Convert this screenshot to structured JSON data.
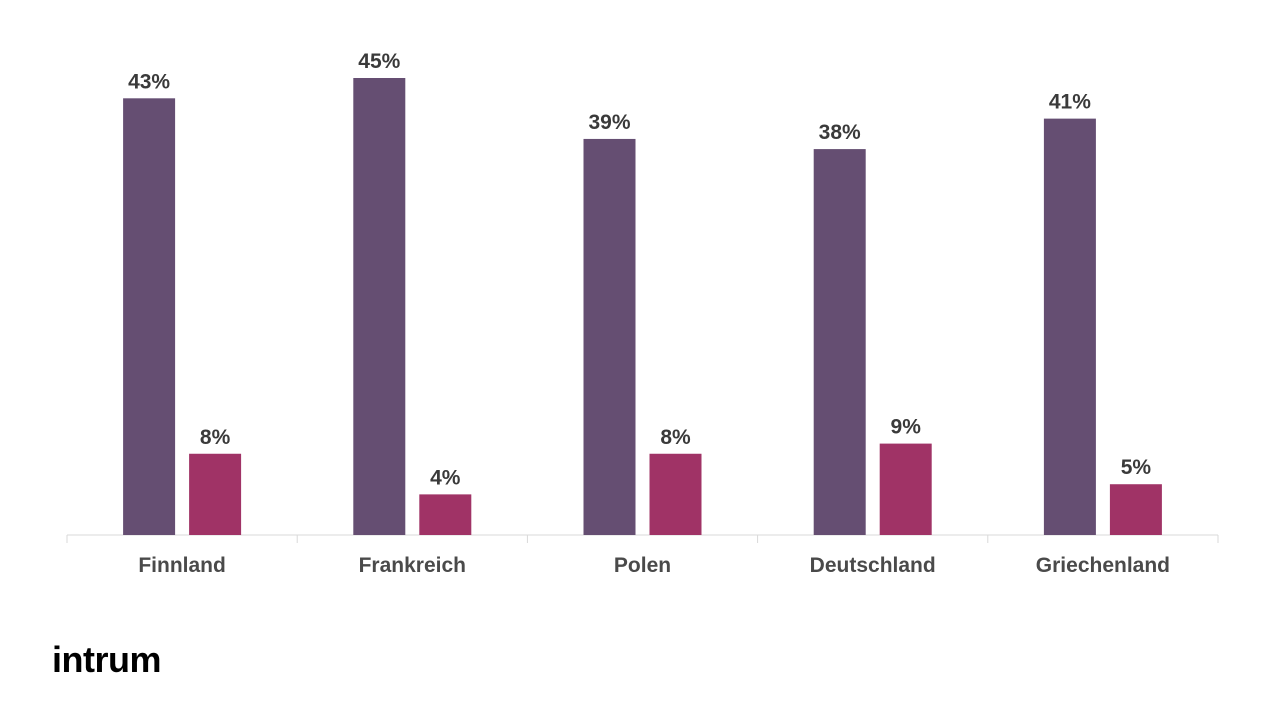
{
  "brand": {
    "logo_text": "intrum"
  },
  "colors": {
    "series1": "#654e72",
    "series2": "#a03366",
    "axis": "#d9d9d9",
    "label": "#3a3a3a",
    "category": "#4a4a4a"
  },
  "chart_data": {
    "type": "bar",
    "categories": [
      "Finnland",
      "Frankreich",
      "Polen",
      "Deutschland",
      "Griechenland"
    ],
    "series": [
      {
        "values": [
          43,
          45,
          39,
          38,
          41
        ],
        "labels": [
          "43%",
          "45%",
          "39%",
          "38%",
          "41%"
        ],
        "color": "#654e72"
      },
      {
        "values": [
          8,
          4,
          8,
          9,
          5
        ],
        "labels": [
          "8%",
          "4%",
          "8%",
          "9%",
          "5%"
        ],
        "color": "#a03366"
      }
    ],
    "unit": "%",
    "ylim": [
      0,
      45
    ],
    "grid": false,
    "legend": "none"
  }
}
